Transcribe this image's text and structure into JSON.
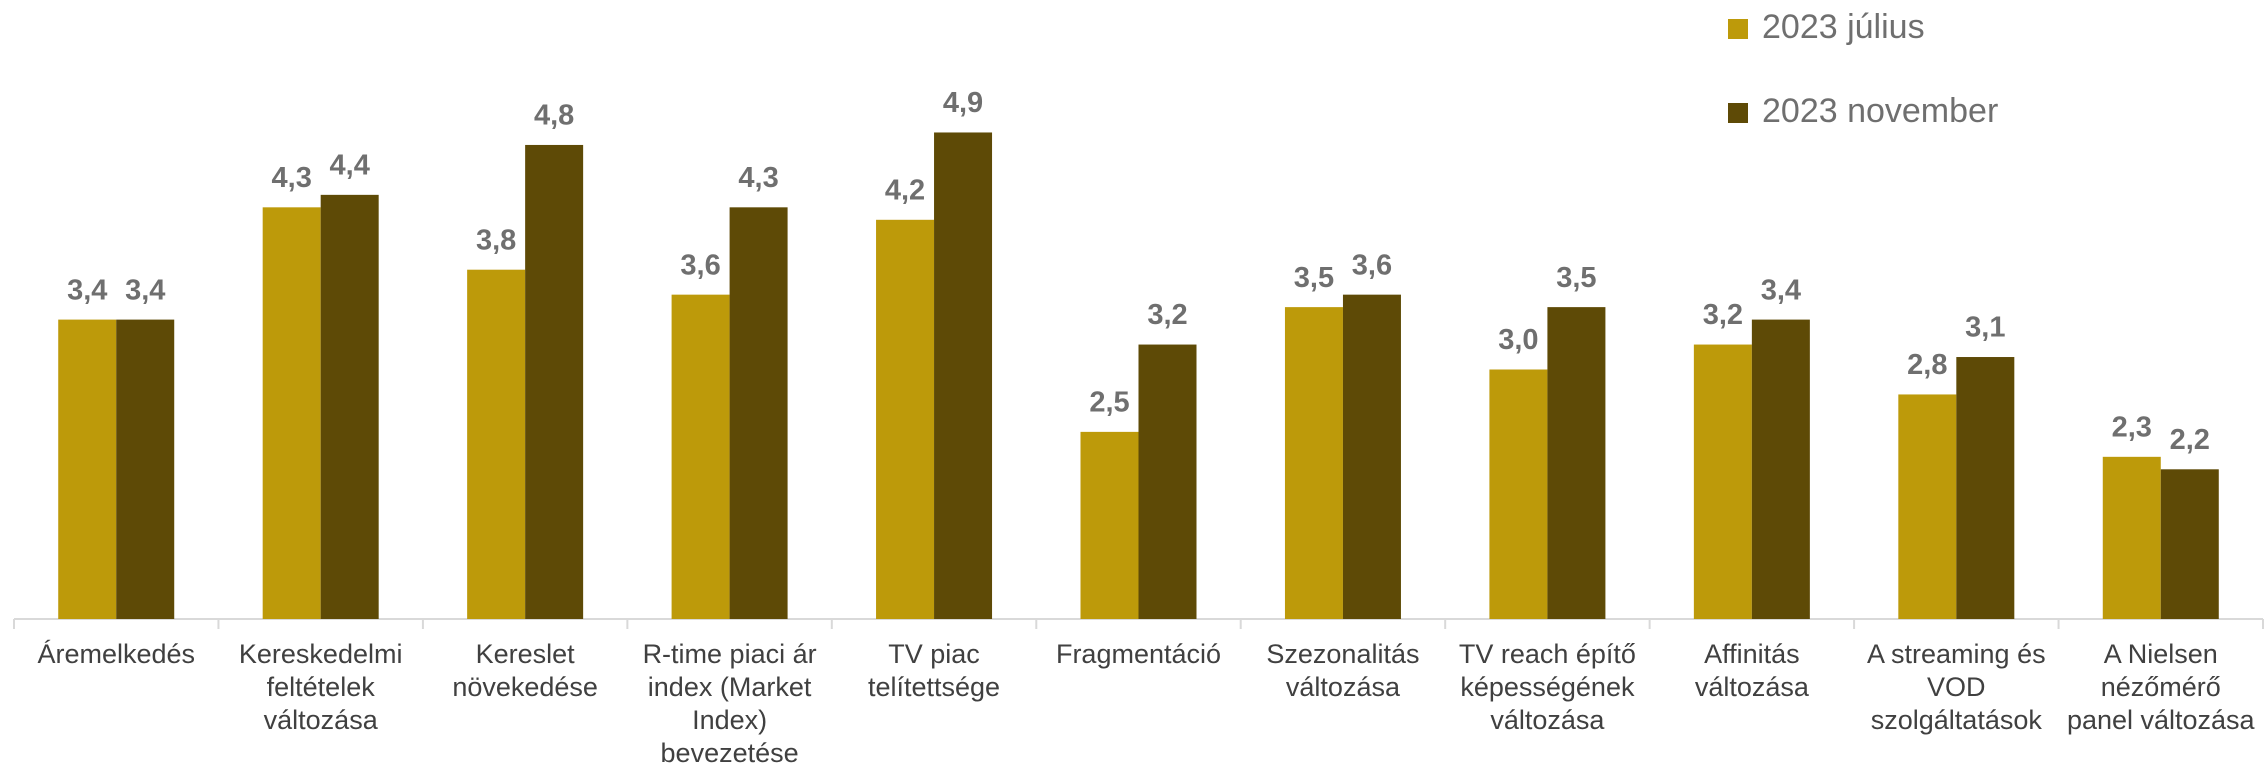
{
  "chart_data": {
    "type": "bar",
    "categories": [
      "Áremelkedés",
      "Kereskedelmi\nfeltételek\nváltozása",
      "Kereslet\nnövekedése",
      "R-time piaci ár\nindex (Market\nIndex)\nbevezetése",
      "TV piac\ntelítettsége",
      "Fragmentáció",
      "Szezonalitás\nváltozása",
      "TV reach építő\nképességének\nváltozása",
      "Affinitás\nváltozása",
      "A streaming és\nVOD\nszolgáltatások",
      "A Nielsen\nnézőmérő\npanel változása"
    ],
    "series": [
      {
        "name": "2023 július",
        "color": "#bd9a0a",
        "values": [
          3.4,
          4.3,
          3.8,
          3.6,
          4.2,
          2.5,
          3.5,
          3.0,
          3.2,
          2.8,
          2.3
        ],
        "value_labels": [
          "3,4",
          "4,3",
          "3,8",
          "3,6",
          "4,2",
          "2,5",
          "3,5",
          "3,0",
          "3,2",
          "2,8",
          "2,3"
        ]
      },
      {
        "name": "2023 november",
        "color": "#5e4a06",
        "values": [
          3.4,
          4.4,
          4.8,
          4.3,
          4.9,
          3.2,
          3.6,
          3.5,
          3.4,
          3.1,
          2.2
        ],
        "value_labels": [
          "3,4",
          "4,4",
          "4,8",
          "4,3",
          "4,9",
          "3,2",
          "3,6",
          "3,5",
          "3,4",
          "3,1",
          "2,2"
        ]
      }
    ],
    "ylim": [
      1,
      5
    ],
    "legend": "top-right"
  }
}
